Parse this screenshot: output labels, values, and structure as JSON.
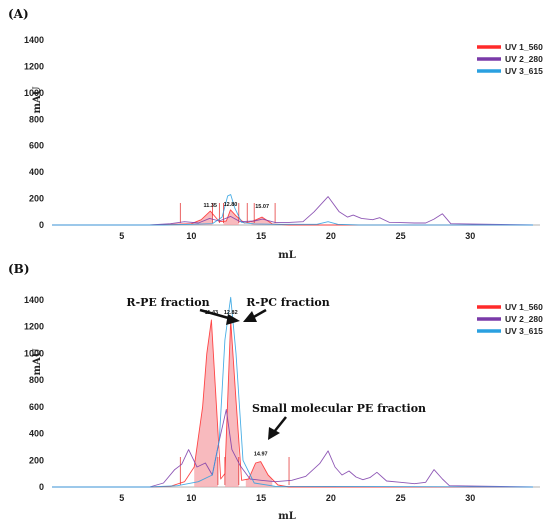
{
  "chart_data": [
    {
      "type": "line",
      "panel_label": "(A)",
      "xlabel": "mL",
      "ylabel": "mAU",
      "xlim": [
        0,
        35
      ],
      "ylim": [
        0,
        1400
      ],
      "xticks": [
        5,
        10,
        15,
        20,
        25,
        30
      ],
      "yticks": [
        0,
        200,
        400,
        600,
        800,
        1000,
        1200,
        1400
      ],
      "legend": {
        "placement": "top-right"
      },
      "series": [
        {
          "name": "UV 1_560",
          "color": "#ff2a2a",
          "x": [
            0,
            7,
            8.5,
            10,
            10.7,
            11.35,
            12,
            12.5,
            12.8,
            13.2,
            13.8,
            14.3,
            15.07,
            15.8,
            17,
            34.5
          ],
          "y": [
            0,
            0,
            5,
            10,
            40,
            105,
            25,
            30,
            115,
            70,
            15,
            25,
            60,
            8,
            0,
            0
          ]
        },
        {
          "name": "UV 2_280",
          "color": "#7a3aa8",
          "x": [
            0,
            7,
            8.5,
            9.5,
            10.5,
            11.3,
            12,
            12.8,
            13.5,
            14.5,
            15.1,
            16,
            17,
            18,
            18.8,
            19.8,
            20.6,
            21.2,
            21.6,
            22.2,
            23,
            23.5,
            24.2,
            25,
            26,
            26.8,
            27.4,
            28,
            28.6,
            34.5
          ],
          "y": [
            0,
            0,
            10,
            25,
            15,
            50,
            30,
            65,
            25,
            30,
            45,
            20,
            20,
            25,
            100,
            215,
            100,
            60,
            75,
            50,
            40,
            55,
            20,
            18,
            15,
            15,
            45,
            85,
            10,
            0
          ]
        },
        {
          "name": "UV 3_615",
          "color": "#2aa0e0",
          "x": [
            0,
            8,
            10,
            11.5,
            12.2,
            12.6,
            12.82,
            13.1,
            13.6,
            14.5,
            16,
            19,
            19.8,
            20.5,
            22,
            34.5
          ],
          "y": [
            0,
            0,
            5,
            10,
            60,
            220,
            230,
            130,
            20,
            8,
            5,
            5,
            25,
            5,
            0,
            0
          ]
        }
      ],
      "peak_labels": [
        {
          "x": 11.35,
          "text": "11.35"
        },
        {
          "x": 12.8,
          "text": "12.80"
        },
        {
          "x": 15.07,
          "text": "15.07"
        }
      ],
      "fraction_markers": [
        9.2,
        11.5,
        12.0,
        12.3,
        13.4,
        14.0,
        14.5,
        16.0
      ]
    },
    {
      "type": "line",
      "panel_label": "(B)",
      "xlabel": "mL",
      "ylabel": "mAU",
      "xlim": [
        0,
        35
      ],
      "ylim": [
        0,
        1400
      ],
      "xticks": [
        5,
        10,
        15,
        20,
        25,
        30
      ],
      "yticks": [
        0,
        200,
        400,
        600,
        800,
        1000,
        1200,
        1400
      ],
      "legend": {
        "placement": "top-right"
      },
      "series": [
        {
          "name": "UV 1_560",
          "color": "#ff2a2a",
          "x": [
            0,
            7,
            8.5,
            9.5,
            10.2,
            10.8,
            11.1,
            11.43,
            11.8,
            12.1,
            12.4,
            12.82,
            13.2,
            13.6,
            14.1,
            14.6,
            14.97,
            15.5,
            16.2,
            17,
            34.5
          ],
          "y": [
            0,
            0,
            5,
            40,
            150,
            600,
            1000,
            1250,
            600,
            60,
            100,
            1250,
            650,
            50,
            60,
            180,
            190,
            90,
            15,
            0,
            0
          ]
        },
        {
          "name": "UV 2_280",
          "color": "#7a3aa8",
          "x": [
            0,
            7,
            8,
            8.8,
            9.3,
            9.8,
            10.4,
            11.0,
            11.5,
            12.0,
            12.5,
            12.9,
            13.5,
            14.2,
            15.0,
            16.0,
            17.2,
            18.2,
            19.2,
            19.8,
            20.3,
            20.8,
            21.3,
            21.8,
            22.3,
            22.8,
            23.3,
            24.0,
            25.0,
            26.0,
            26.8,
            27.4,
            28.0,
            28.5,
            34.5
          ],
          "y": [
            0,
            0,
            30,
            130,
            170,
            280,
            150,
            180,
            90,
            350,
            580,
            280,
            160,
            60,
            50,
            40,
            50,
            80,
            175,
            270,
            150,
            90,
            120,
            75,
            55,
            70,
            110,
            45,
            35,
            25,
            35,
            130,
            60,
            10,
            0
          ]
        },
        {
          "name": "UV 3_615",
          "color": "#2aa0e0",
          "x": [
            0,
            7,
            9,
            10.5,
            11.5,
            12.0,
            12.4,
            12.82,
            13.2,
            13.7,
            14.5,
            16,
            34.5
          ],
          "y": [
            0,
            0,
            10,
            40,
            90,
            350,
            1100,
            1420,
            1000,
            200,
            30,
            5,
            0
          ]
        }
      ],
      "peak_labels": [
        {
          "x": 11.43,
          "text": "11.43"
        },
        {
          "x": 12.82,
          "text": "12.82"
        },
        {
          "x": 14.97,
          "text": "14.97"
        }
      ],
      "fraction_markers": [
        9.2,
        11.9,
        12.4,
        13.4,
        17.0
      ],
      "annotations": [
        {
          "text": "R-PE fraction"
        },
        {
          "text": "R-PC fraction"
        },
        {
          "text": "Small molecular  PE fraction"
        }
      ]
    }
  ]
}
